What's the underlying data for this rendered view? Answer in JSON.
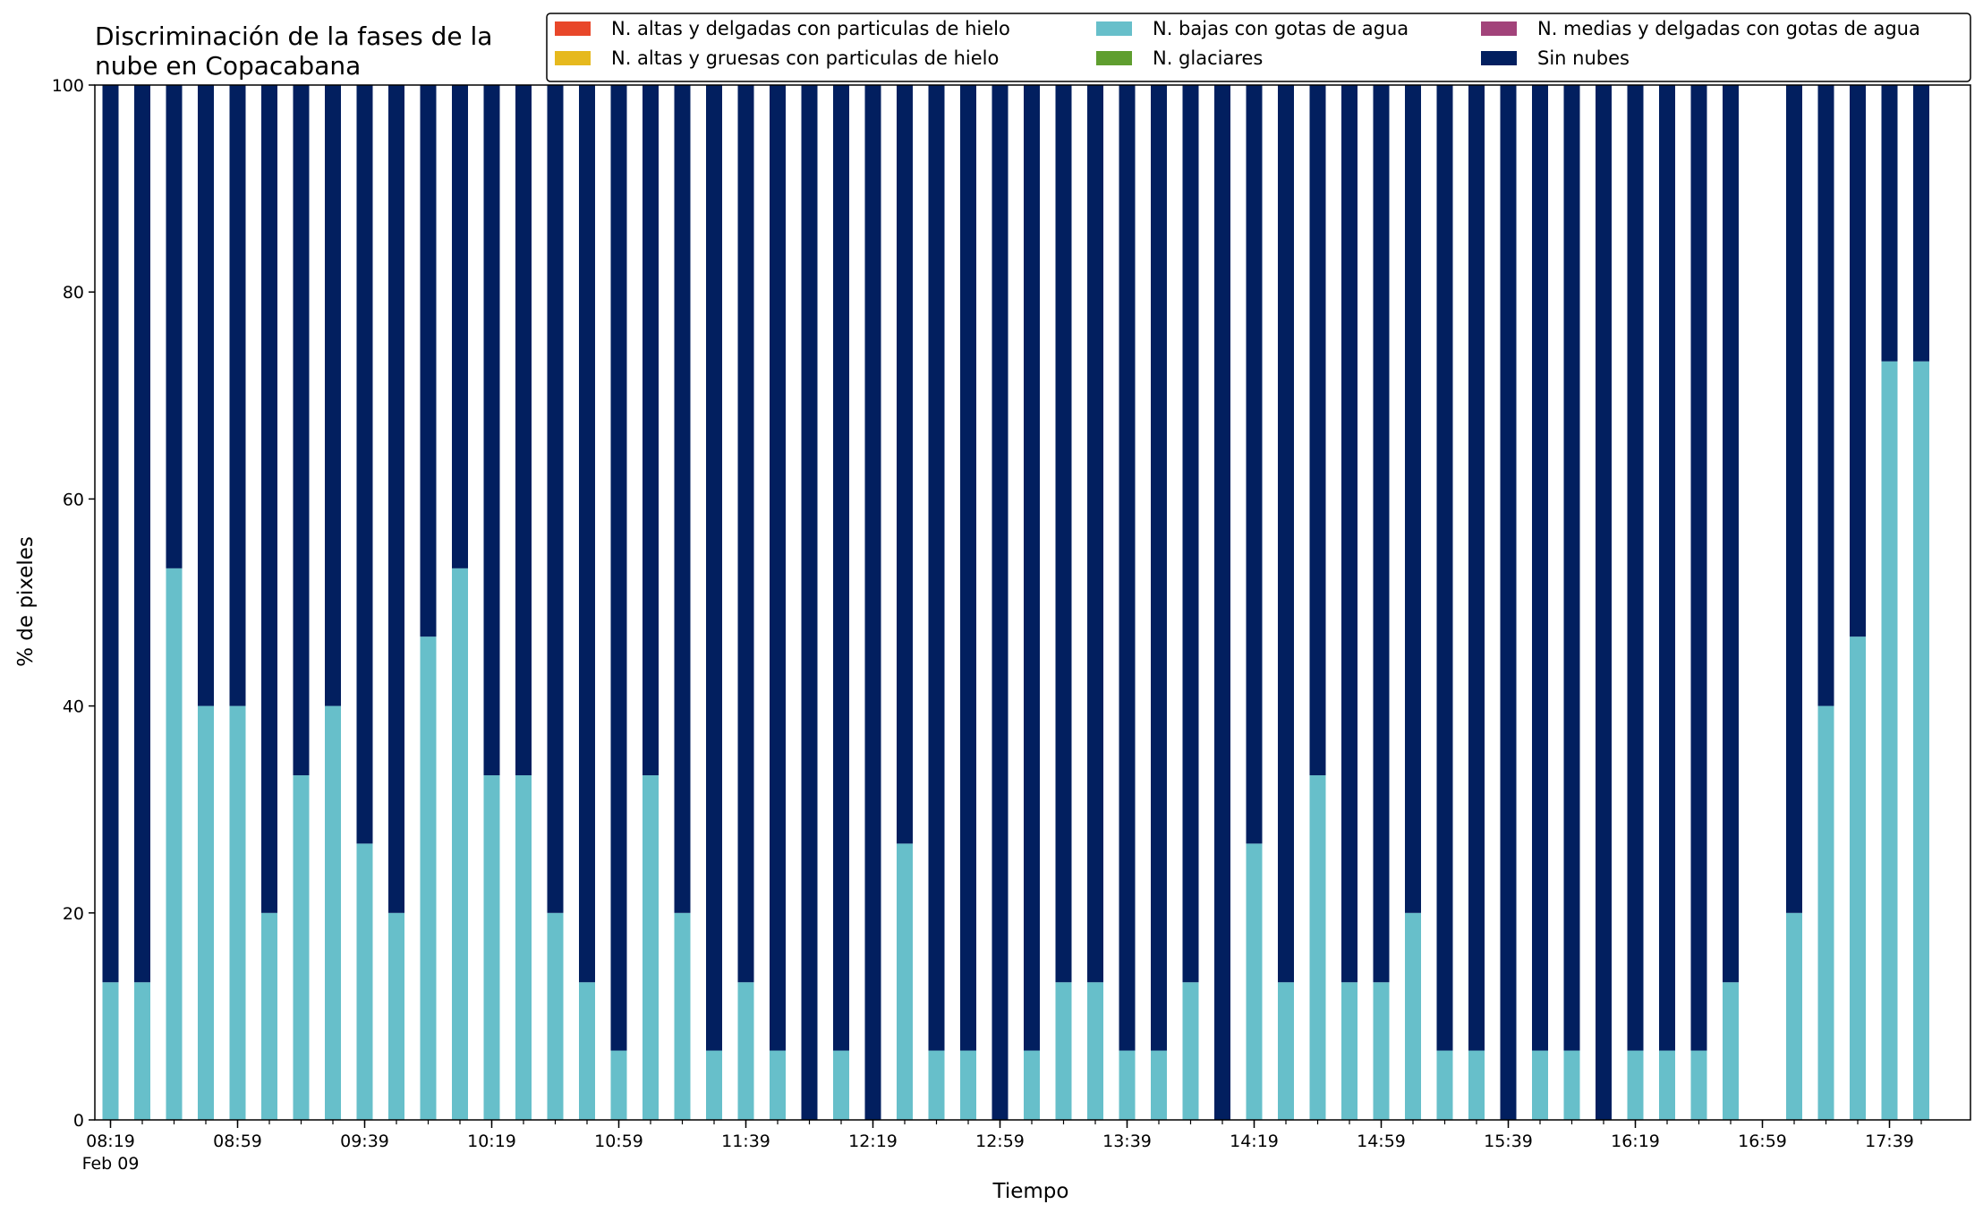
{
  "chart_data": {
    "type": "bar",
    "stacked": true,
    "title": [
      "Discriminación de la fases de la",
      "nube en Copacabana"
    ],
    "xlabel": "Tiempo",
    "ylabel": "% de pixeles",
    "ylim": [
      0,
      100
    ],
    "yticks": [
      0,
      20,
      40,
      60,
      80,
      100
    ],
    "grid": false,
    "legend_position": "top-right",
    "x_date_label": "Feb 09",
    "x_tick_labels": [
      "08:19",
      "08:59",
      "09:39",
      "10:19",
      "10:59",
      "11:39",
      "12:19",
      "12:59",
      "13:39",
      "14:19",
      "14:59",
      "15:39",
      "16:19",
      "16:59",
      "17:39"
    ],
    "categories": [
      "08:19",
      "08:29",
      "08:39",
      "08:49",
      "08:59",
      "09:09",
      "09:19",
      "09:29",
      "09:39",
      "09:49",
      "09:59",
      "10:09",
      "10:19",
      "10:29",
      "10:39",
      "10:49",
      "10:59",
      "11:09",
      "11:19",
      "11:29",
      "11:39",
      "11:49",
      "11:59",
      "12:09",
      "12:19",
      "12:29",
      "12:39",
      "12:49",
      "12:59",
      "13:09",
      "13:19",
      "13:29",
      "13:39",
      "13:49",
      "13:59",
      "14:09",
      "14:19",
      "14:29",
      "14:39",
      "14:49",
      "14:59",
      "15:09",
      "15:19",
      "15:29",
      "15:39",
      "15:49",
      "15:59",
      "16:09",
      "16:19",
      "16:29",
      "16:39",
      "16:49",
      "16:59",
      "17:09",
      "17:19",
      "17:29",
      "17:39",
      "17:49"
    ],
    "series": [
      {
        "name": "N. altas y delgadas con particulas de hielo",
        "color": "#e8472a",
        "values": [
          0,
          0,
          0,
          0,
          0,
          0,
          0,
          0,
          0,
          0,
          0,
          0,
          0,
          0,
          0,
          0,
          0,
          0,
          0,
          0,
          0,
          0,
          0,
          0,
          0,
          0,
          0,
          0,
          0,
          0,
          0,
          0,
          0,
          0,
          0,
          0,
          0,
          0,
          0,
          0,
          0,
          0,
          0,
          0,
          0,
          0,
          0,
          0,
          0,
          0,
          0,
          0,
          null,
          0,
          0,
          0,
          0,
          0
        ]
      },
      {
        "name": "N. altas y gruesas con particulas de hielo",
        "color": "#e6b91e",
        "values": [
          0,
          0,
          0,
          0,
          0,
          0,
          0,
          0,
          0,
          0,
          0,
          0,
          0,
          0,
          0,
          0,
          0,
          0,
          0,
          0,
          0,
          0,
          0,
          0,
          0,
          0,
          0,
          0,
          0,
          0,
          0,
          0,
          0,
          0,
          0,
          0,
          0,
          0,
          0,
          0,
          0,
          0,
          0,
          0,
          0,
          0,
          0,
          0,
          0,
          0,
          0,
          0,
          null,
          0,
          0,
          0,
          0,
          0
        ]
      },
      {
        "name": "N. bajas con gotas de agua",
        "color": "#67bfca",
        "values": [
          13.3,
          13.3,
          53.3,
          40,
          40,
          20,
          33.3,
          40,
          26.7,
          20,
          46.7,
          53.3,
          33.3,
          33.3,
          20,
          13.3,
          6.7,
          33.3,
          20,
          6.7,
          13.3,
          6.7,
          0,
          6.7,
          0,
          26.7,
          6.7,
          6.7,
          0,
          6.7,
          13.3,
          13.3,
          6.7,
          6.7,
          13.3,
          0,
          26.7,
          13.3,
          33.3,
          13.3,
          13.3,
          20,
          6.7,
          6.7,
          0,
          6.7,
          6.7,
          0,
          6.7,
          6.7,
          6.7,
          13.3,
          null,
          20,
          40,
          46.7,
          73.3,
          73.3
        ]
      },
      {
        "name": "N. glaciares",
        "color": "#5f9e2f",
        "values": [
          0,
          0,
          0,
          0,
          0,
          0,
          0,
          0,
          0,
          0,
          0,
          0,
          0,
          0,
          0,
          0,
          0,
          0,
          0,
          0,
          0,
          0,
          0,
          0,
          0,
          0,
          0,
          0,
          0,
          0,
          0,
          0,
          0,
          0,
          0,
          0,
          0,
          0,
          0,
          0,
          0,
          0,
          0,
          0,
          0,
          0,
          0,
          0,
          0,
          0,
          0,
          0,
          null,
          0,
          0,
          0,
          0,
          0
        ]
      },
      {
        "name": "N. medias y delgadas con gotas de agua",
        "color": "#a2437a",
        "values": [
          0,
          0,
          0,
          0,
          0,
          0,
          0,
          0,
          0,
          0,
          0,
          0,
          0,
          0,
          0,
          0,
          0,
          0,
          0,
          0,
          0,
          0,
          0,
          0,
          0,
          0,
          0,
          0,
          0,
          0,
          0,
          0,
          0,
          0,
          0,
          0,
          0,
          0,
          0,
          0,
          0,
          0,
          0,
          0,
          0,
          0,
          0,
          0,
          0,
          0,
          0,
          0,
          null,
          0,
          0,
          0,
          0,
          0
        ]
      },
      {
        "name": "Sin nubes",
        "color": "#021f5f",
        "values": [
          86.7,
          86.7,
          46.7,
          60,
          60,
          80,
          66.7,
          60,
          73.3,
          80,
          53.3,
          46.7,
          66.7,
          66.7,
          80,
          86.7,
          93.3,
          66.7,
          80,
          93.3,
          86.7,
          93.3,
          100,
          93.3,
          100,
          73.3,
          93.3,
          93.3,
          100,
          93.3,
          86.7,
          86.7,
          93.3,
          93.3,
          86.7,
          100,
          73.3,
          86.7,
          66.7,
          86.7,
          86.7,
          80,
          93.3,
          93.3,
          100,
          93.3,
          93.3,
          100,
          93.3,
          93.3,
          93.3,
          86.7,
          null,
          80,
          60,
          53.3,
          26.7,
          26.7
        ]
      }
    ]
  }
}
